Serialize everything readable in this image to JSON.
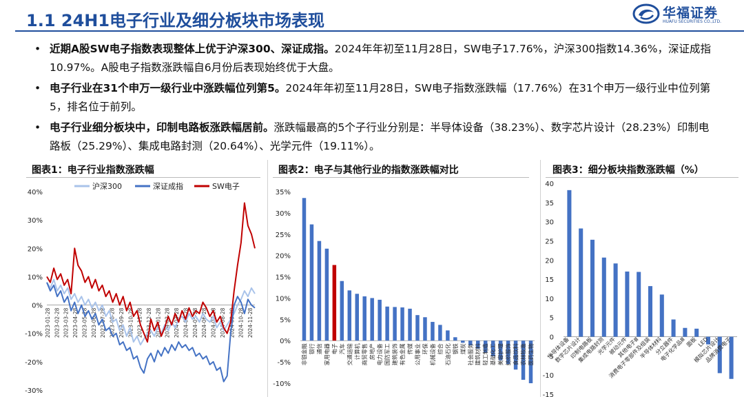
{
  "header": {
    "title": "1.1 24H1电子行业及细分板块市场表现",
    "logo_cn": "华福证券",
    "logo_en": "HUAFU SECURITIES CO.,LTD."
  },
  "bullets": [
    {
      "bold": "近期A股SW电子指数表现整体上优于沪深300、深证成指。",
      "text": "2024年年初至11月28日，SW电子17.76%，沪深300指数14.36%，深证成指10.97%。A股电子指数涨跌幅自6月份后表现始终优于大盘。"
    },
    {
      "bold": "电子行业在31个申万一级行业中涨跌幅位列第5。",
      "text": "2024年年初至11月28日，SW电子指数涨跌幅（17.76%）在31个申万一级行业中位列第5，排名位于前列。"
    },
    {
      "bold": "电子行业细分板块中，印制电路板涨跌幅居前。",
      "text": "涨跌幅最高的5个子行业分别是：半导体设备（38.23%）、数字芯片设计（28.23%）印制电路板（25.29%）、集成电路封测（20.64%）、光学元件（19.11%）。"
    }
  ],
  "figure_titles": [
    "图表1：电子行业指数涨跌幅",
    "图表2：电子与其他行业的指数涨跌幅对比",
    "图表3：细分板块指数涨跌幅（%）"
  ],
  "chart_data": [
    {
      "type": "line",
      "title": "图表1：电子行业指数涨跌幅",
      "ylim": [
        -30,
        40
      ],
      "yticks": [
        "40%",
        "30%",
        "20%",
        "10%",
        "0%",
        "-10%",
        "-20%",
        "-30%"
      ],
      "x_tick_labels": [
        "2023-01-28",
        "2023-02-28",
        "2023-03-28",
        "2023-04-28",
        "2023-05-28",
        "2023-06-28",
        "2023-07-28",
        "2023-08-28",
        "2023-09-28",
        "2023-10-28",
        "2023-11-28",
        "2023-12-28",
        "2024-01-28",
        "2024-02-28",
        "2024-03-28",
        "2024-04-28",
        "2024-05-28",
        "2024-06-28",
        "2024-07-28",
        "2024-08-28",
        "2024-09-28",
        "2024-10-28",
        "2024-11-28"
      ],
      "legend": "top-center",
      "grid": false,
      "series": [
        {
          "name": "沪深300",
          "color": "#a9c3ea",
          "values": [
            8,
            6,
            9,
            5,
            7,
            4,
            6,
            2,
            4,
            1,
            3,
            0,
            2,
            -1,
            1,
            -2,
            0,
            -4,
            -2,
            -6,
            -5,
            -9,
            -7,
            -11,
            -8,
            -13,
            -11,
            -14,
            -12,
            -10,
            -9,
            -11,
            -8,
            -10,
            -7,
            -9,
            -6,
            -8,
            -5,
            -4,
            -6,
            -3,
            -5,
            -4,
            -6,
            -3,
            -5,
            -6,
            -4,
            -8,
            -6,
            -9,
            -7,
            -5,
            -3,
            0,
            2,
            5,
            3,
            6,
            4
          ]
        },
        {
          "name": "深证成指",
          "color": "#4472c4",
          "values": [
            8,
            5,
            7,
            3,
            5,
            1,
            3,
            -2,
            1,
            -3,
            0,
            -4,
            -2,
            -5,
            -3,
            -7,
            -5,
            -9,
            -8,
            -11,
            -10,
            -14,
            -13,
            -16,
            -15,
            -19,
            -18,
            -22,
            -24,
            -19,
            -17,
            -20,
            -16,
            -18,
            -15,
            -17,
            -14,
            -16,
            -13,
            -15,
            -14,
            -16,
            -15,
            -18,
            -17,
            -19,
            -18,
            -21,
            -20,
            -23,
            -22,
            -27,
            -25,
            -10,
            0,
            3,
            1,
            -3,
            2,
            0,
            -1
          ]
        },
        {
          "name": "SW电子",
          "color": "#c00000",
          "values": [
            10,
            8,
            13,
            9,
            11,
            7,
            9,
            4,
            20,
            14,
            12,
            8,
            10,
            6,
            9,
            5,
            7,
            3,
            5,
            1,
            4,
            0,
            3,
            -2,
            1,
            -4,
            -2,
            -7,
            -10,
            -13,
            -5,
            -9,
            -6,
            -11,
            -8,
            -4,
            -7,
            -3,
            -6,
            -2,
            -5,
            -1,
            -4,
            -2,
            -3,
            1,
            -1,
            -4,
            -2,
            -6,
            -4,
            -8,
            -10,
            -6,
            5,
            14,
            22,
            36,
            28,
            25,
            20
          ]
        }
      ]
    },
    {
      "type": "bar",
      "title": "图表2：电子与其他行业的指数涨跌幅对比",
      "ylim": [
        -10,
        35
      ],
      "yticks": [
        "35%",
        "30%",
        "25%",
        "20%",
        "15%",
        "10%",
        "5%",
        "0%",
        "-5%",
        "-10%"
      ],
      "highlight_category": "电子",
      "colors": {
        "default": "#4472c4",
        "highlight": "#c00000"
      },
      "categories": [
        "非银金融",
        "银行",
        "通信",
        "家用电器",
        "电子",
        "汽车",
        "交通运输",
        "计算机",
        "商贸零售",
        "房地产",
        "电力设备",
        "国防军工",
        "建筑装饰",
        "有色金属",
        "传媒",
        "公用事业",
        "环保",
        "机械设备",
        "综合",
        "石油石化",
        "钢铁",
        "煤炭",
        "社会服务",
        "建筑材料",
        "轻工制造",
        "基础化工",
        "美容护理",
        "纺织服饰",
        "食品饮料",
        "农林牧渔",
        "医药生物"
      ],
      "values": [
        33.5,
        27.3,
        23.4,
        21.6,
        17.76,
        14.0,
        11.8,
        11.0,
        10.4,
        10.0,
        9.6,
        8.0,
        7.9,
        7.8,
        7.5,
        6.0,
        5.5,
        4.4,
        3.7,
        2.4,
        0.8,
        -0.5,
        -1.1,
        -1.9,
        -2.8,
        -3.7,
        -4.6,
        -5.5,
        -6.8,
        -9.2,
        -10.0
      ]
    },
    {
      "type": "bar",
      "title": "图表3：细分板块指数涨跌幅（%）",
      "ylim": [
        -15,
        40
      ],
      "yticks": [
        "40",
        "35",
        "30",
        "25",
        "20",
        "15",
        "10",
        "5",
        "0",
        "-5",
        "-10",
        "-15"
      ],
      "colors": {
        "default": "#4472c4"
      },
      "categories": [
        "半导体设备",
        "数字芯片设计",
        "印制电路板",
        "集成电路封测",
        "光学元件",
        "被动元件",
        "其他电子Ⅲ",
        "消费电子零部件及组装",
        "半导体材料",
        "分立器件",
        "电子化学品Ⅲ",
        "面板",
        "LED",
        "模拟芯片设计",
        "品牌消费电子"
      ],
      "values": [
        38.23,
        28.23,
        25.29,
        20.64,
        19.11,
        17.0,
        16.9,
        13.2,
        11.0,
        4.5,
        2.3,
        2.1,
        -2.0,
        -9.5,
        -11.0
      ]
    }
  ]
}
